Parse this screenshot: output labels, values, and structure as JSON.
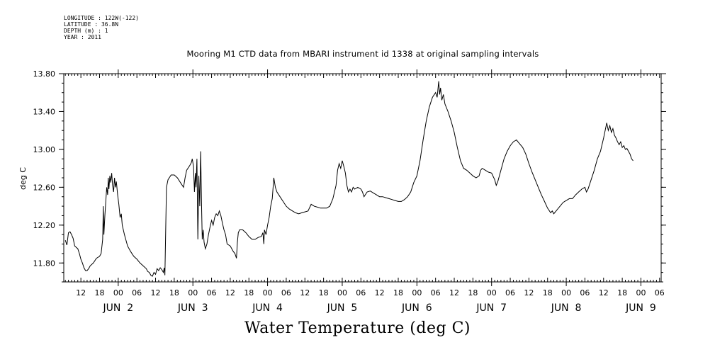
{
  "header_meta": [
    "LONGITUDE : 122W(-122)",
    "LATITUDE : 36.8N",
    "DEPTH (m) : 1",
    "YEAR : 2011"
  ],
  "chart_data": {
    "type": "line",
    "title": "Mooring M1 CTD data from MBARI instrument id 1338 at original sampling intervals",
    "bottom_title": "Water Temperature (deg C)",
    "ylabel": "deg C",
    "xlabel": "",
    "x_units": "hours since Jun 1 2011 00:00",
    "xlim": [
      6.5,
      198.5
    ],
    "ylim": [
      11.6,
      13.8
    ],
    "y_ticks": [
      11.8,
      12.2,
      12.6,
      13.0,
      13.4,
      13.8
    ],
    "y_tick_labels": [
      "11.80",
      "12.20",
      "12.60",
      "13.00",
      "13.40",
      "13.80"
    ],
    "x_hour_ticks": [
      {
        "x": 12,
        "label": "12"
      },
      {
        "x": 18,
        "label": "18"
      },
      {
        "x": 24,
        "label": "00"
      },
      {
        "x": 30,
        "label": "06"
      },
      {
        "x": 36,
        "label": "12"
      },
      {
        "x": 42,
        "label": "18"
      },
      {
        "x": 48,
        "label": "00"
      },
      {
        "x": 54,
        "label": "06"
      },
      {
        "x": 60,
        "label": "12"
      },
      {
        "x": 66,
        "label": "18"
      },
      {
        "x": 72,
        "label": "00"
      },
      {
        "x": 78,
        "label": "06"
      },
      {
        "x": 84,
        "label": "12"
      },
      {
        "x": 90,
        "label": "18"
      },
      {
        "x": 96,
        "label": "00"
      },
      {
        "x": 102,
        "label": "06"
      },
      {
        "x": 108,
        "label": "12"
      },
      {
        "x": 114,
        "label": "18"
      },
      {
        "x": 120,
        "label": "00"
      },
      {
        "x": 126,
        "label": "06"
      },
      {
        "x": 132,
        "label": "12"
      },
      {
        "x": 138,
        "label": "18"
      },
      {
        "x": 144,
        "label": "00"
      },
      {
        "x": 150,
        "label": "06"
      },
      {
        "x": 156,
        "label": "12"
      },
      {
        "x": 162,
        "label": "18"
      },
      {
        "x": 168,
        "label": "00"
      },
      {
        "x": 174,
        "label": "06"
      },
      {
        "x": 180,
        "label": "12"
      },
      {
        "x": 186,
        "label": "18"
      },
      {
        "x": 192,
        "label": "00"
      },
      {
        "x": 198,
        "label": "06"
      }
    ],
    "x_day_labels": [
      {
        "x": 24,
        "label": "JUN  2"
      },
      {
        "x": 48,
        "label": "JUN  3"
      },
      {
        "x": 72,
        "label": "JUN  4"
      },
      {
        "x": 96,
        "label": "JUN  5"
      },
      {
        "x": 120,
        "label": "JUN  6"
      },
      {
        "x": 144,
        "label": "JUN  7"
      },
      {
        "x": 168,
        "label": "JUN  8"
      },
      {
        "x": 192,
        "label": "JUN  9"
      }
    ],
    "series": [
      {
        "values": [
          [
            7.0,
            12.04
          ],
          [
            7.5,
            11.99
          ],
          [
            8.0,
            12.12
          ],
          [
            8.5,
            12.13
          ],
          [
            9.0,
            12.1
          ],
          [
            9.5,
            12.06
          ],
          [
            10.0,
            11.98
          ],
          [
            11.0,
            11.95
          ],
          [
            11.5,
            11.9
          ],
          [
            12.0,
            11.84
          ],
          [
            12.5,
            11.8
          ],
          [
            13.0,
            11.75
          ],
          [
            13.5,
            11.72
          ],
          [
            14.0,
            11.72
          ],
          [
            14.5,
            11.74
          ],
          [
            15.0,
            11.77
          ],
          [
            16.0,
            11.8
          ],
          [
            17.0,
            11.85
          ],
          [
            18.0,
            11.87
          ],
          [
            18.5,
            11.9
          ],
          [
            19.0,
            12.05
          ],
          [
            19.2,
            12.4
          ],
          [
            19.4,
            12.1
          ],
          [
            19.7,
            12.3
          ],
          [
            20.0,
            12.45
          ],
          [
            20.3,
            12.6
          ],
          [
            20.6,
            12.52
          ],
          [
            20.8,
            12.7
          ],
          [
            21.0,
            12.58
          ],
          [
            21.3,
            12.72
          ],
          [
            21.6,
            12.65
          ],
          [
            21.9,
            12.75
          ],
          [
            22.2,
            12.62
          ],
          [
            22.5,
            12.55
          ],
          [
            22.8,
            12.7
          ],
          [
            23.1,
            12.6
          ],
          [
            23.4,
            12.66
          ],
          [
            23.8,
            12.52
          ],
          [
            24.2,
            12.42
          ],
          [
            24.6,
            12.28
          ],
          [
            25.0,
            12.32
          ],
          [
            25.3,
            12.2
          ],
          [
            26.0,
            12.1
          ],
          [
            27.0,
            11.98
          ],
          [
            28.0,
            11.92
          ],
          [
            29.0,
            11.87
          ],
          [
            30.0,
            11.84
          ],
          [
            31.0,
            11.8
          ],
          [
            32.0,
            11.77
          ],
          [
            33.0,
            11.74
          ],
          [
            33.5,
            11.71
          ],
          [
            34.0,
            11.7
          ],
          [
            34.5,
            11.67
          ],
          [
            35.0,
            11.66
          ],
          [
            35.5,
            11.7
          ],
          [
            36.0,
            11.68
          ],
          [
            36.5,
            11.74
          ],
          [
            37.0,
            11.72
          ],
          [
            37.5,
            11.75
          ],
          [
            38.0,
            11.73
          ],
          [
            38.5,
            11.7
          ],
          [
            38.8,
            11.75
          ],
          [
            39.0,
            11.67
          ],
          [
            39.5,
            12.6
          ],
          [
            40.0,
            12.68
          ],
          [
            41.0,
            12.73
          ],
          [
            42.0,
            12.73
          ],
          [
            43.0,
            12.7
          ],
          [
            44.0,
            12.65
          ],
          [
            45.0,
            12.6
          ],
          [
            45.5,
            12.7
          ],
          [
            46.0,
            12.78
          ],
          [
            47.0,
            12.83
          ],
          [
            47.5,
            12.86
          ],
          [
            47.8,
            12.9
          ],
          [
            48.2,
            12.82
          ],
          [
            48.5,
            12.55
          ],
          [
            48.8,
            12.75
          ],
          [
            49.0,
            12.6
          ],
          [
            49.3,
            12.9
          ],
          [
            49.6,
            12.05
          ],
          [
            49.9,
            12.72
          ],
          [
            50.2,
            12.4
          ],
          [
            50.5,
            12.98
          ],
          [
            50.8,
            12.38
          ],
          [
            51.0,
            12.05
          ],
          [
            51.3,
            12.15
          ],
          [
            51.6,
            12.02
          ],
          [
            52.0,
            11.95
          ],
          [
            52.5,
            12.0
          ],
          [
            53.0,
            12.1
          ],
          [
            53.5,
            12.18
          ],
          [
            54.0,
            12.25
          ],
          [
            54.5,
            12.2
          ],
          [
            55.0,
            12.28
          ],
          [
            55.5,
            12.32
          ],
          [
            56.0,
            12.3
          ],
          [
            56.5,
            12.35
          ],
          [
            57.0,
            12.3
          ],
          [
            57.5,
            12.22
          ],
          [
            58.0,
            12.15
          ],
          [
            58.5,
            12.1
          ],
          [
            59.0,
            12.0
          ],
          [
            60.0,
            11.98
          ],
          [
            60.5,
            11.95
          ],
          [
            61.0,
            11.92
          ],
          [
            61.5,
            11.9
          ],
          [
            62.0,
            11.85
          ],
          [
            62.3,
            12.02
          ],
          [
            62.6,
            12.12
          ],
          [
            63.0,
            12.15
          ],
          [
            64.0,
            12.15
          ],
          [
            65.0,
            12.12
          ],
          [
            66.0,
            12.08
          ],
          [
            67.0,
            12.05
          ],
          [
            68.0,
            12.05
          ],
          [
            69.0,
            12.07
          ],
          [
            70.0,
            12.08
          ],
          [
            70.5,
            12.12
          ],
          [
            70.8,
            12.0
          ],
          [
            71.0,
            12.15
          ],
          [
            71.5,
            12.1
          ],
          [
            72.0,
            12.2
          ],
          [
            72.5,
            12.28
          ],
          [
            73.0,
            12.4
          ],
          [
            73.5,
            12.48
          ],
          [
            74.0,
            12.7
          ],
          [
            74.5,
            12.6
          ],
          [
            75.0,
            12.55
          ],
          [
            76.0,
            12.5
          ],
          [
            77.0,
            12.45
          ],
          [
            78.0,
            12.4
          ],
          [
            79.0,
            12.37
          ],
          [
            80.0,
            12.35
          ],
          [
            81.0,
            12.33
          ],
          [
            82.0,
            12.32
          ],
          [
            83.0,
            12.33
          ],
          [
            84.0,
            12.34
          ],
          [
            85.0,
            12.35
          ],
          [
            86.0,
            12.42
          ],
          [
            87.0,
            12.4
          ],
          [
            88.0,
            12.39
          ],
          [
            89.0,
            12.38
          ],
          [
            90.0,
            12.38
          ],
          [
            91.0,
            12.38
          ],
          [
            92.0,
            12.4
          ],
          [
            93.0,
            12.48
          ],
          [
            94.0,
            12.62
          ],
          [
            94.5,
            12.78
          ],
          [
            95.0,
            12.85
          ],
          [
            95.5,
            12.8
          ],
          [
            96.0,
            12.88
          ],
          [
            96.5,
            12.82
          ],
          [
            97.0,
            12.75
          ],
          [
            97.5,
            12.62
          ],
          [
            98.0,
            12.55
          ],
          [
            98.5,
            12.58
          ],
          [
            99.0,
            12.55
          ],
          [
            99.5,
            12.6
          ],
          [
            100.0,
            12.58
          ],
          [
            101.0,
            12.6
          ],
          [
            102.0,
            12.58
          ],
          [
            102.5,
            12.55
          ],
          [
            103.0,
            12.5
          ],
          [
            104.0,
            12.55
          ],
          [
            105.0,
            12.56
          ],
          [
            106.0,
            12.54
          ],
          [
            107.0,
            12.52
          ],
          [
            108.0,
            12.5
          ],
          [
            109.0,
            12.5
          ],
          [
            110.0,
            12.49
          ],
          [
            111.0,
            12.48
          ],
          [
            112.0,
            12.47
          ],
          [
            113.0,
            12.46
          ],
          [
            114.0,
            12.45
          ],
          [
            115.0,
            12.45
          ],
          [
            116.0,
            12.47
          ],
          [
            117.0,
            12.5
          ],
          [
            118.0,
            12.55
          ],
          [
            119.0,
            12.65
          ],
          [
            120.0,
            12.72
          ],
          [
            121.0,
            12.88
          ],
          [
            122.0,
            13.1
          ],
          [
            123.0,
            13.3
          ],
          [
            124.0,
            13.45
          ],
          [
            125.0,
            13.55
          ],
          [
            126.0,
            13.6
          ],
          [
            126.5,
            13.55
          ],
          [
            127.0,
            13.72
          ],
          [
            127.3,
            13.58
          ],
          [
            127.6,
            13.65
          ],
          [
            128.0,
            13.52
          ],
          [
            128.5,
            13.58
          ],
          [
            129.0,
            13.48
          ],
          [
            130.0,
            13.4
          ],
          [
            131.0,
            13.3
          ],
          [
            132.0,
            13.18
          ],
          [
            133.0,
            13.02
          ],
          [
            134.0,
            12.88
          ],
          [
            135.0,
            12.8
          ],
          [
            136.0,
            12.78
          ],
          [
            137.0,
            12.75
          ],
          [
            138.0,
            12.72
          ],
          [
            139.0,
            12.7
          ],
          [
            140.0,
            12.72
          ],
          [
            140.5,
            12.78
          ],
          [
            141.0,
            12.8
          ],
          [
            142.0,
            12.78
          ],
          [
            143.0,
            12.76
          ],
          [
            144.0,
            12.75
          ],
          [
            145.0,
            12.68
          ],
          [
            145.5,
            12.62
          ],
          [
            146.0,
            12.66
          ],
          [
            147.0,
            12.78
          ],
          [
            148.0,
            12.9
          ],
          [
            149.0,
            12.98
          ],
          [
            150.0,
            13.04
          ],
          [
            151.0,
            13.08
          ],
          [
            152.0,
            13.1
          ],
          [
            153.0,
            13.06
          ],
          [
            154.0,
            13.02
          ],
          [
            155.0,
            12.95
          ],
          [
            156.0,
            12.85
          ],
          [
            157.0,
            12.76
          ],
          [
            158.0,
            12.68
          ],
          [
            159.0,
            12.6
          ],
          [
            160.0,
            12.52
          ],
          [
            161.0,
            12.45
          ],
          [
            162.0,
            12.38
          ],
          [
            163.0,
            12.33
          ],
          [
            163.5,
            12.35
          ],
          [
            164.0,
            12.32
          ],
          [
            165.0,
            12.36
          ],
          [
            166.0,
            12.4
          ],
          [
            167.0,
            12.44
          ],
          [
            168.0,
            12.46
          ],
          [
            169.0,
            12.48
          ],
          [
            170.0,
            12.48
          ],
          [
            171.0,
            12.52
          ],
          [
            172.0,
            12.55
          ],
          [
            173.0,
            12.58
          ],
          [
            174.0,
            12.6
          ],
          [
            174.5,
            12.55
          ],
          [
            175.0,
            12.58
          ],
          [
            176.0,
            12.68
          ],
          [
            177.0,
            12.78
          ],
          [
            178.0,
            12.9
          ],
          [
            179.0,
            12.98
          ],
          [
            180.0,
            13.12
          ],
          [
            180.5,
            13.2
          ],
          [
            181.0,
            13.28
          ],
          [
            181.5,
            13.2
          ],
          [
            182.0,
            13.25
          ],
          [
            182.5,
            13.18
          ],
          [
            183.0,
            13.22
          ],
          [
            183.5,
            13.15
          ],
          [
            184.0,
            13.12
          ],
          [
            184.5,
            13.08
          ],
          [
            185.0,
            13.05
          ],
          [
            185.5,
            13.08
          ],
          [
            186.0,
            13.02
          ],
          [
            186.5,
            13.04
          ],
          [
            187.0,
            13.0
          ],
          [
            187.5,
            13.01
          ],
          [
            188.0,
            12.98
          ],
          [
            188.5,
            12.95
          ],
          [
            189.0,
            12.9
          ],
          [
            189.5,
            12.88
          ]
        ]
      }
    ],
    "grid": false,
    "legend": "none"
  }
}
